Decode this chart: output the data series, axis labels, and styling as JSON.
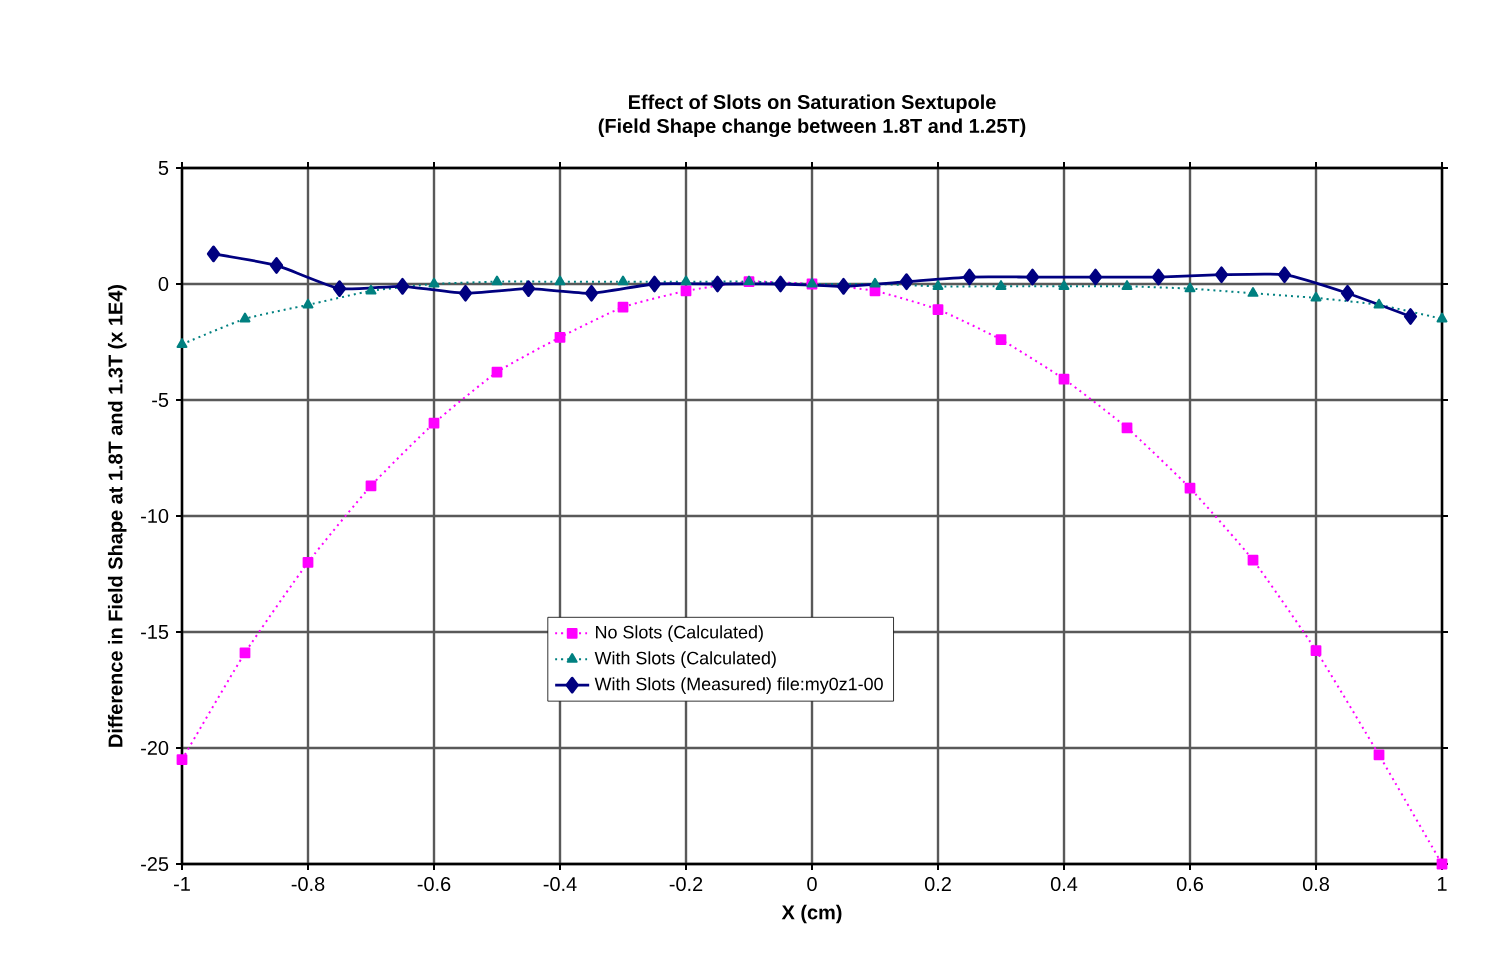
{
  "chart_data": {
    "type": "line",
    "title": "Effect of Slots on Saturation Sextupole",
    "subtitle": "(Field Shape change between 1.8T and 1.25T)",
    "xlabel": "X (cm)",
    "ylabel": "Difference in Field Shape at 1.8T and 1.3T (x 1E4)",
    "xlim": [
      -1,
      1
    ],
    "xticks": [
      -1,
      -0.8,
      -0.6,
      -0.4,
      -0.2,
      0,
      0.2,
      0.4,
      0.6,
      0.8,
      1
    ],
    "ylim": [
      -25,
      5
    ],
    "yticks": [
      -25,
      -20,
      -15,
      -10,
      -5,
      0,
      5
    ],
    "grid": true,
    "legend": "center",
    "series": [
      {
        "name": "No Slots (Calculated)",
        "color": "#ff00ff",
        "marker": "square",
        "line_style": "dotted",
        "x": [
          -1,
          -0.9,
          -0.8,
          -0.7,
          -0.6,
          -0.5,
          -0.4,
          -0.3,
          -0.2,
          -0.1,
          0,
          0.1,
          0.2,
          0.3,
          0.4,
          0.5,
          0.6,
          0.7,
          0.8,
          0.9,
          1
        ],
        "values": [
          -20.5,
          -15.9,
          -12.0,
          -8.7,
          -6.0,
          -3.8,
          -2.3,
          -1.0,
          -0.3,
          0.1,
          0.0,
          -0.3,
          -1.1,
          -2.4,
          -4.1,
          -6.2,
          -8.8,
          -11.9,
          -15.8,
          -20.3,
          -25
        ]
      },
      {
        "name": "With Slots (Calculated)",
        "color": "#008080",
        "marker": "triangle",
        "line_style": "dotted",
        "x": [
          -1,
          -0.9,
          -0.8,
          -0.7,
          -0.6,
          -0.5,
          -0.4,
          -0.3,
          -0.2,
          -0.1,
          0,
          0.1,
          0.2,
          0.3,
          0.4,
          0.5,
          0.6,
          0.7,
          0.8,
          0.9,
          1
        ],
        "values": [
          -2.6,
          -1.5,
          -0.9,
          -0.3,
          0.0,
          0.1,
          0.1,
          0.1,
          0.1,
          0.1,
          0.0,
          0.0,
          -0.1,
          -0.1,
          -0.1,
          -0.1,
          -0.2,
          -0.4,
          -0.6,
          -0.9,
          -1.5
        ]
      },
      {
        "name": "With Slots (Measured)   file:my0z1-00",
        "color": "#000080",
        "marker": "diamond",
        "line_style": "solid",
        "x": [
          -0.95,
          -0.85,
          -0.75,
          -0.65,
          -0.55,
          -0.45,
          -0.35,
          -0.25,
          -0.15,
          -0.05,
          0.05,
          0.15,
          0.25,
          0.35,
          0.45,
          0.55,
          0.65,
          0.75,
          0.85,
          0.95
        ],
        "values": [
          1.3,
          0.8,
          -0.2,
          -0.1,
          -0.4,
          -0.2,
          -0.4,
          0.0,
          0.0,
          0.0,
          -0.1,
          0.1,
          0.3,
          0.3,
          0.3,
          0.3,
          0.4,
          0.4,
          -0.4,
          -1.4
        ]
      }
    ]
  }
}
